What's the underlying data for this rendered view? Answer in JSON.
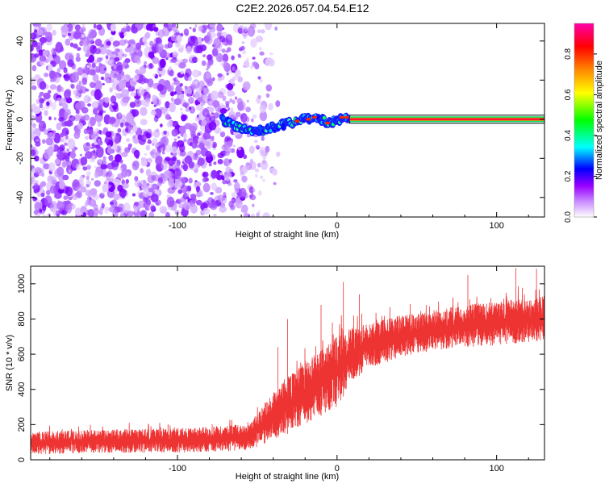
{
  "title": "C2E2.2026.057.04.54.E12",
  "chart_data": [
    {
      "type": "heatmap",
      "xlabel": "Height of straight line (km)",
      "ylabel": "Frequency (Hz)",
      "xlim": [
        -192,
        130
      ],
      "ylim": [
        -50,
        49
      ],
      "xticks": [
        -100,
        0,
        100
      ],
      "xtick_labels": [
        "-100",
        "0",
        "100"
      ],
      "yticks": [
        -40,
        -20,
        0,
        20,
        40
      ],
      "ytick_labels": [
        "-40",
        "-20",
        "0",
        "20",
        "40"
      ],
      "colorbar": {
        "label": "Normalized spectral amplitude",
        "range": [
          0,
          0.95
        ],
        "ticks": [
          0,
          0.2,
          0.4,
          0.6,
          0.8
        ],
        "tick_labels": [
          "0.0",
          "0.2",
          "0.4",
          "0.6",
          "0.8"
        ],
        "colors": [
          "#ffffff",
          "#9a00ff",
          "#0000ff",
          "#00ffff",
          "#00ff00",
          "#ffff00",
          "#ff8800",
          "#ff0000",
          "#ff00aa"
        ]
      },
      "features": {
        "scatter_region_x": [
          -192,
          -50
        ],
        "scatter_density_fade_x": [
          -70,
          -45
        ],
        "ridge": {
          "x": [
            -72,
            -66,
            -60,
            -55,
            -50,
            -45,
            -40,
            -35,
            -30,
            -25,
            -20,
            -15,
            -10,
            -5,
            0,
            5,
            8
          ],
          "y": [
            0,
            -3,
            -5,
            -6,
            -6,
            -5,
            -4,
            -3,
            -2,
            -1,
            0,
            1,
            0,
            -2,
            -1,
            1,
            1
          ]
        },
        "line": {
          "x_start": 8,
          "x_end": 130,
          "y": 0
        }
      }
    },
    {
      "type": "line",
      "xlabel": "Height of straight line (km)",
      "ylabel": "SNR (10 * v/v)",
      "xlim": [
        -192,
        130
      ],
      "ylim": [
        0,
        1100
      ],
      "xticks": [
        -100,
        0,
        100
      ],
      "xtick_labels": [
        "-100",
        "0",
        "100"
      ],
      "yticks": [
        0,
        200,
        400,
        600,
        800,
        1000
      ],
      "ytick_labels": [
        "0",
        "200",
        "400",
        "600",
        "800",
        "1000"
      ],
      "color": "#ee3333",
      "envelope": {
        "x": [
          -192,
          -150,
          -100,
          -60,
          -50,
          -40,
          -30,
          -20,
          -10,
          0,
          10,
          20,
          40,
          60,
          80,
          100,
          130
        ],
        "lower": [
          30,
          40,
          40,
          50,
          70,
          120,
          150,
          200,
          250,
          300,
          450,
          520,
          580,
          620,
          640,
          650,
          680
        ],
        "upper": [
          160,
          170,
          180,
          200,
          260,
          380,
          480,
          560,
          640,
          700,
          760,
          780,
          820,
          850,
          880,
          900,
          930
        ],
        "spikes": [
          {
            "x": -37,
            "y": 640
          },
          {
            "x": -31,
            "y": 800
          },
          {
            "x": -10,
            "y": 880
          },
          {
            "x": 4,
            "y": 1010
          },
          {
            "x": 14,
            "y": 940
          },
          {
            "x": 82,
            "y": 1050
          },
          {
            "x": 112,
            "y": 1090
          },
          {
            "x": 125,
            "y": 1085
          }
        ]
      }
    }
  ]
}
